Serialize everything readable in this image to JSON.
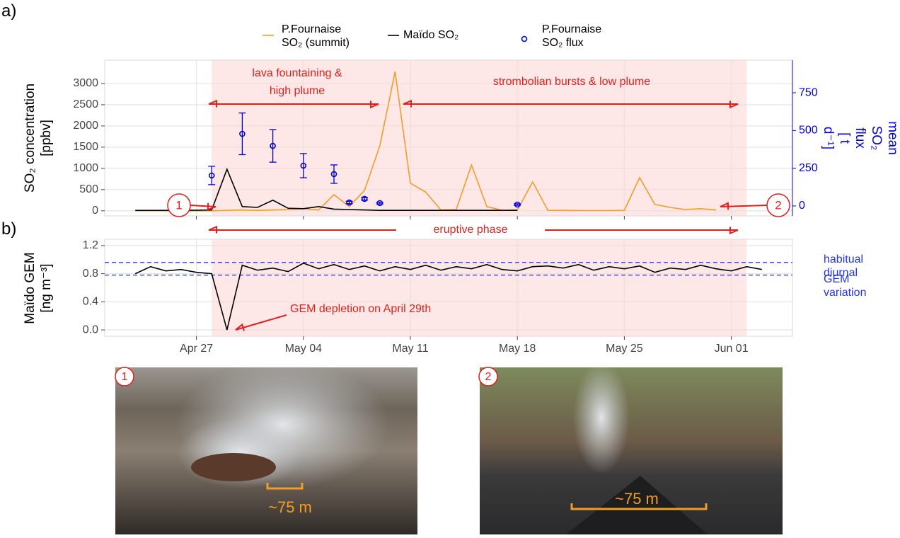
{
  "chart_data": [
    {
      "type": "line",
      "panel_label": "a)",
      "y_label": "SO₂ concentration\n[ppbv]",
      "y2_label": "mean SO₂ flux\n[ t d⁻¹]",
      "xlim": [
        "04-21",
        "06-05"
      ],
      "xticks": [
        "04-27",
        "05-04",
        "05-11",
        "05-18",
        "05-25",
        "06-01"
      ],
      "ylim": [
        -120,
        3550
      ],
      "yticks": [
        0,
        500,
        1000,
        1500,
        2000,
        2500,
        3000
      ],
      "y2lim": [
        -66,
        966
      ],
      "y2ticks": [
        0,
        250,
        500,
        750
      ],
      "y2color": "#0000dd",
      "grid": true,
      "shade": {
        "x": [
          "04-28",
          "06-02"
        ],
        "color": "#fbd3d3"
      },
      "series": [
        {
          "name": "P.Fournaise\nSO₂ (summit)",
          "color": "#f39c26",
          "x": [
            "04-23",
            "04-24",
            "04-25",
            "04-26",
            "04-27",
            "04-28",
            "04-29",
            "04-30",
            "05-01",
            "05-02",
            "05-03",
            "05-04",
            "05-05",
            "05-06",
            "05-07",
            "05-08",
            "05-09",
            "05-10",
            "05-11",
            "05-12",
            "05-13",
            "05-14",
            "05-15",
            "05-16",
            "05-17",
            "05-18",
            "05-19",
            "05-20",
            "05-21",
            "05-22",
            "05-23",
            "05-24",
            "05-25",
            "05-26",
            "05-27",
            "05-28",
            "05-29",
            "05-30",
            "05-31"
          ],
          "values": [
            0,
            0,
            0,
            0,
            0,
            0,
            10,
            20,
            10,
            20,
            30,
            50,
            20,
            380,
            100,
            480,
            1530,
            3280,
            650,
            440,
            20,
            30,
            1080,
            100,
            10,
            20,
            680,
            10,
            10,
            5,
            5,
            5,
            10,
            780,
            150,
            80,
            30,
            50,
            20
          ]
        },
        {
          "name": "Maïdo SO₂",
          "color": "#000000",
          "x": [
            "04-23",
            "04-24",
            "04-25",
            "04-26",
            "04-27",
            "04-28",
            "04-29",
            "04-30",
            "05-01",
            "05-02",
            "05-03",
            "05-04",
            "05-05",
            "05-06",
            "05-07",
            "05-08",
            "05-09",
            "05-10",
            "05-11",
            "05-12",
            "05-13",
            "05-14",
            "05-15",
            "05-16",
            "05-17",
            "05-18"
          ],
          "values": [
            10,
            10,
            10,
            10,
            15,
            20,
            980,
            100,
            80,
            250,
            60,
            50,
            100,
            40,
            30,
            20,
            10,
            10,
            10,
            10,
            10,
            10,
            10,
            10,
            10,
            10
          ]
        },
        {
          "name": "P.Fournaise\nSO₂ flux",
          "color": "#0000dd",
          "axis": "y2",
          "kind": "errorbar",
          "x": [
            "04-28",
            "04-30",
            "05-02",
            "05-04",
            "05-06",
            "05-07",
            "05-08",
            "05-09",
            "05-18"
          ],
          "values": [
            202,
            478,
            398,
            267,
            211,
            23,
            47,
            19,
            9
          ],
          "errors": [
            61,
            138,
            108,
            80,
            61,
            8,
            8,
            6,
            5
          ]
        }
      ],
      "annotations": [
        "lava fountaining &\nhigh plume",
        "strombolian bursts & low plume",
        "1",
        "2"
      ]
    },
    {
      "type": "line",
      "panel_label": "b)",
      "y_label": "Maïdo GEM\n[ng m⁻³]",
      "xlim": [
        "04-21",
        "06-05"
      ],
      "xticks": [
        {
          "value": "04-27",
          "label": "Apr 27"
        },
        {
          "value": "05-04",
          "label": "May 04"
        },
        {
          "value": "05-11",
          "label": "May 11"
        },
        {
          "value": "05-18",
          "label": "May 18"
        },
        {
          "value": "05-25",
          "label": "May 25"
        },
        {
          "value": "06-01",
          "label": "Jun 01"
        }
      ],
      "ylim": [
        -0.09,
        1.29
      ],
      "yticks": [
        {
          "value": 0,
          "label": "0.0"
        },
        0.4,
        0.8,
        1.2
      ],
      "grid": true,
      "shade": {
        "x": [
          "04-28",
          "06-02"
        ],
        "color": "#fbd3d3"
      },
      "hlines": {
        "values": [
          0.96,
          0.78
        ],
        "color": "#2233ee"
      },
      "series": [
        {
          "color": "#000000",
          "x": [
            "04-23",
            "04-24",
            "04-25",
            "04-26",
            "04-27",
            "04-28",
            "04-29",
            "04-30",
            "05-01",
            "05-02",
            "05-03",
            "05-04",
            "05-05",
            "05-06",
            "05-07",
            "05-08",
            "05-09",
            "05-10",
            "05-11",
            "05-12",
            "05-13",
            "05-14",
            "05-15",
            "05-16",
            "05-17",
            "05-18",
            "05-19",
            "05-20",
            "05-21",
            "05-22",
            "05-23",
            "05-24",
            "05-25",
            "05-26",
            "05-27",
            "05-28",
            "05-29",
            "05-30",
            "05-31",
            "06-01",
            "06-02",
            "06-03"
          ],
          "values": [
            0.8,
            0.9,
            0.84,
            0.86,
            0.82,
            0.8,
            0.0,
            0.92,
            0.85,
            0.88,
            0.83,
            0.95,
            0.87,
            0.93,
            0.86,
            0.91,
            0.84,
            0.9,
            0.86,
            0.92,
            0.85,
            0.9,
            0.87,
            0.93,
            0.86,
            0.84,
            0.9,
            0.91,
            0.88,
            0.93,
            0.85,
            0.9,
            0.87,
            0.91,
            0.82,
            0.88,
            0.86,
            0.92,
            0.87,
            0.84,
            0.9,
            0.86
          ]
        }
      ],
      "annotations": [
        "eruptive phase",
        "GEM depletion on April 29th",
        "habitual diurnal",
        "GEM variation"
      ]
    }
  ],
  "photos": [
    {
      "label": "1",
      "scale": "~75 m"
    },
    {
      "label": "2",
      "scale": "~75 m"
    }
  ]
}
